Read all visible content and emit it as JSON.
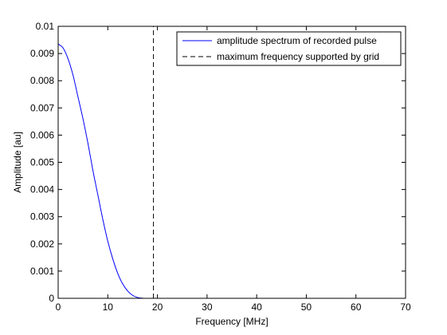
{
  "chart_data": {
    "type": "line",
    "title": "",
    "xlabel": "Frequency [MHz]",
    "ylabel": "Amplitude [au]",
    "xlim": [
      0,
      70
    ],
    "ylim": [
      0,
      0.01
    ],
    "x_ticks": [
      0,
      10,
      20,
      30,
      40,
      50,
      60,
      70
    ],
    "x_tick_labels": [
      "0",
      "10",
      "20",
      "30",
      "40",
      "50",
      "60",
      "70"
    ],
    "y_ticks": [
      0,
      0.001,
      0.002,
      0.003,
      0.004,
      0.005,
      0.006,
      0.007,
      0.008,
      0.009,
      0.01
    ],
    "y_tick_labels": [
      "0",
      "0.001",
      "0.002",
      "0.003",
      "0.004",
      "0.005",
      "0.006",
      "0.007",
      "0.008",
      "0.009",
      "0.01"
    ],
    "grid": false,
    "legend_position": "top-right",
    "series": [
      {
        "name": "amplitude spectrum of recorded pulse",
        "color": "#0000ff",
        "style": "solid",
        "x": [
          0,
          1,
          2,
          3,
          4,
          5,
          6,
          7,
          8,
          9,
          10,
          11,
          12,
          13,
          14,
          15,
          16,
          17,
          18,
          19,
          20,
          25,
          30,
          35,
          40,
          45,
          50,
          55,
          60,
          64
        ],
        "y": [
          0.00935,
          0.0092,
          0.0088,
          0.0082,
          0.0074,
          0.0066,
          0.0057,
          0.0047,
          0.0038,
          0.0029,
          0.0021,
          0.00145,
          0.00092,
          0.00053,
          0.00027,
          0.00011,
          3e-05,
          5e-06,
          0,
          0,
          0,
          0,
          0,
          0,
          0,
          0,
          0,
          0,
          0,
          0
        ]
      },
      {
        "name": "maximum frequency supported by grid",
        "color": "#000000",
        "style": "dashed",
        "x": [
          19.2,
          19.2
        ],
        "y": [
          0,
          0.01
        ]
      }
    ]
  }
}
